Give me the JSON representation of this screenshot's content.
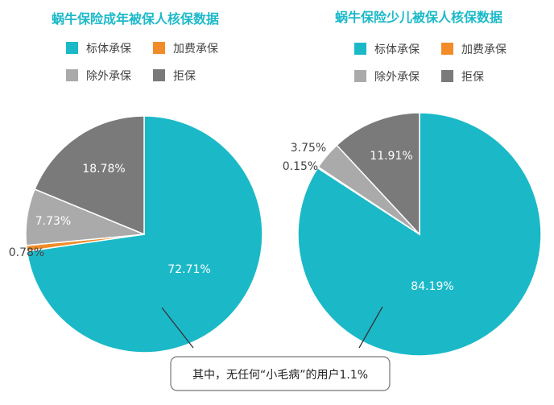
{
  "colors": {
    "standard": "#1bb9c8",
    "extra_premium": "#f28c28",
    "exclusion": "#aaaaaa",
    "declined": "#7a7a7a",
    "title": "#1bb9c8"
  },
  "chart_data": [
    {
      "type": "pie",
      "title": "蜗牛保险成年被保人核保数据",
      "legend": [
        "标体承保",
        "加费承保",
        "除外承保",
        "拒保"
      ],
      "legend_position": "top",
      "slices": [
        {
          "name": "标体承保",
          "value": 72.71,
          "label": "72.71%"
        },
        {
          "name": "加费承保",
          "value": 0.78,
          "label": "0.78%"
        },
        {
          "name": "除外承保",
          "value": 7.73,
          "label": "7.73%"
        },
        {
          "name": "拒保",
          "value": 18.78,
          "label": "18.78%"
        }
      ]
    },
    {
      "type": "pie",
      "title": "蜗牛保险少儿被保人核保数据",
      "legend": [
        "标体承保",
        "加费承保",
        "除外承保",
        "拒保"
      ],
      "legend_position": "top",
      "slices": [
        {
          "name": "标体承保",
          "value": 84.19,
          "label": "84.19%"
        },
        {
          "name": "加费承保",
          "value": 0.15,
          "label": "0.15%"
        },
        {
          "name": "除外承保",
          "value": 3.75,
          "label": "3.75%"
        },
        {
          "name": "拒保",
          "value": 11.91,
          "label": "11.91%"
        }
      ]
    }
  ],
  "callout": {
    "text": "其中，无任何“小毛病”的用户1.1%"
  }
}
